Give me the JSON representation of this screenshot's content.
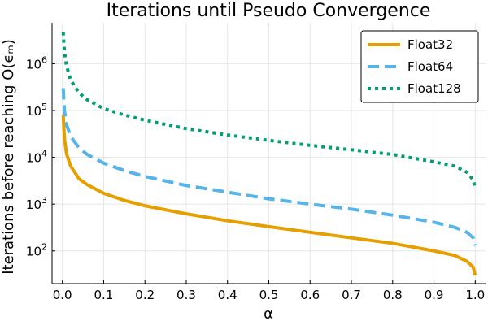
{
  "chart_data": {
    "type": "line",
    "title": "Iterations until Pseudo Convergence",
    "xlabel": "α",
    "ylabel": "Iterations before reaching O(ϵₘ)",
    "xlim": [
      -0.025,
      1.025
    ],
    "ylim": [
      20,
      7500000
    ],
    "yscale": "log",
    "grid": true,
    "legend_position": "top-right",
    "x_ticks": [
      0.0,
      0.1,
      0.2,
      0.3,
      0.4,
      0.5,
      0.6,
      0.7,
      0.8,
      0.9,
      1.0
    ],
    "x_tick_labels": [
      "0.0",
      "0.1",
      "0.2",
      "0.3",
      "0.4",
      "0.5",
      "0.6",
      "0.7",
      "0.8",
      "0.9",
      "1.0"
    ],
    "y_ticks": [
      100,
      1000,
      10000,
      100000,
      1000000
    ],
    "y_tick_exponents": [
      "2",
      "3",
      "4",
      "5",
      "6"
    ],
    "y_tick_base": "10",
    "series": [
      {
        "name": "Float32",
        "color": "#e69f00",
        "style": "solid",
        "x": [
          0.002,
          0.005,
          0.01,
          0.02,
          0.04,
          0.06,
          0.1,
          0.15,
          0.2,
          0.3,
          0.4,
          0.5,
          0.6,
          0.7,
          0.8,
          0.9,
          0.95,
          0.98,
          0.995,
          1.0
        ],
        "y": [
          80000,
          25000,
          12000,
          6500,
          3500,
          2600,
          1700,
          1200,
          920,
          620,
          440,
          330,
          250,
          190,
          145,
          100,
          80,
          60,
          45,
          30
        ]
      },
      {
        "name": "Float64",
        "color": "#56b4e9",
        "style": "dashed",
        "x": [
          0.002,
          0.005,
          0.01,
          0.02,
          0.04,
          0.06,
          0.1,
          0.15,
          0.2,
          0.3,
          0.4,
          0.5,
          0.6,
          0.7,
          0.8,
          0.9,
          0.95,
          0.98,
          0.995,
          1.0
        ],
        "y": [
          300000,
          100000,
          50000,
          28000,
          16000,
          11500,
          7500,
          5200,
          3900,
          2500,
          1800,
          1300,
          1000,
          780,
          580,
          410,
          320,
          250,
          190,
          130
        ]
      },
      {
        "name": "Float128",
        "color": "#009e73",
        "style": "dotted",
        "x": [
          0.002,
          0.005,
          0.01,
          0.02,
          0.04,
          0.06,
          0.1,
          0.15,
          0.2,
          0.3,
          0.4,
          0.5,
          0.6,
          0.7,
          0.8,
          0.9,
          0.95,
          0.98,
          0.995,
          1.0
        ],
        "y": [
          4700000,
          1800000,
          900000,
          450000,
          240000,
          170000,
          110000,
          80000,
          62000,
          41000,
          30000,
          23000,
          18000,
          14500,
          11500,
          8000,
          6500,
          4800,
          3300,
          2200
        ]
      }
    ]
  }
}
